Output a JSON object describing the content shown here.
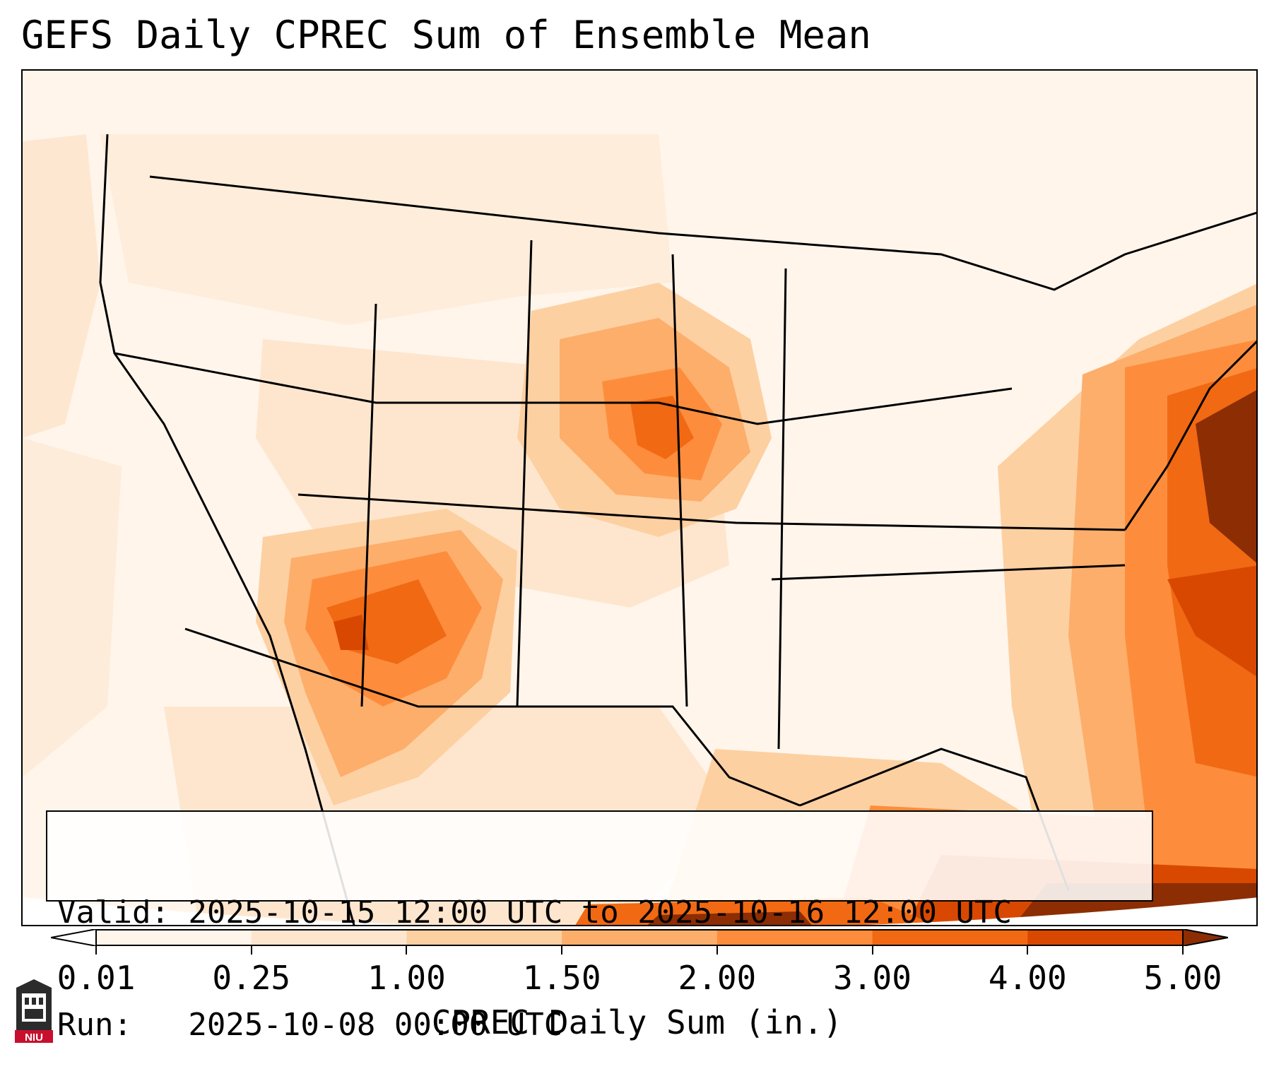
{
  "title": "GEFS Daily CPREC Sum of Ensemble Mean",
  "info": {
    "valid_line": "Valid: 2025-10-15 12:00 UTC to 2025-10-16 12:00 UTC",
    "run_line": "Run:   2025-10-08 00:00 UTC"
  },
  "colorbar": {
    "label": "CPREC Daily Sum (in.)",
    "ticks": [
      "0.01",
      "0.25",
      "1.00",
      "1.50",
      "2.00",
      "3.00",
      "4.00",
      "5.00"
    ],
    "colors": [
      "#fff5eb",
      "#fee6ce",
      "#fdd0a2",
      "#fdae6b",
      "#fd8d3c",
      "#f16913",
      "#d94801",
      "#8c2d04"
    ],
    "extend": "both"
  },
  "logo": {
    "text": "NIU",
    "icon": "niu-castle-logo"
  },
  "map": {
    "region": "contiguous United States",
    "precip_maxima": [
      "Nebraska / Iowa",
      "Arizona / New Mexico",
      "western Atlantic off the East Coast",
      "Gulf of Mexico / Caribbean"
    ]
  }
}
